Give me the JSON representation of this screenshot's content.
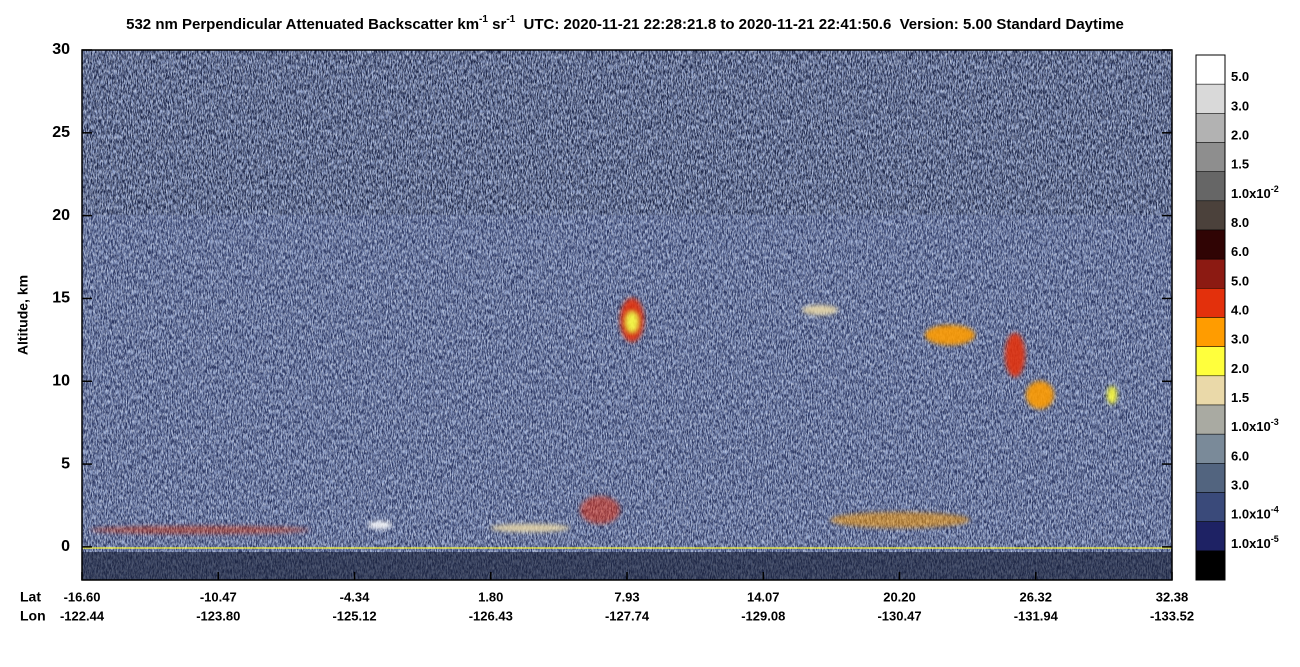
{
  "chart_data": {
    "type": "image",
    "title_parts": [
      "532 nm Perpendicular Attenuated Backscatter km",
      "-1",
      " sr",
      "-1",
      "  UTC: 2020-11-21 22:28:21.8 to 2020-11-21 22:41:50.6  Version: 5.00 Standard Daytime"
    ],
    "ylabel": "Altitude, km",
    "ylim": [
      -2,
      30
    ],
    "yticks": [
      0,
      5,
      10,
      15,
      20,
      25,
      30
    ],
    "lat_name": "Lat",
    "lon_name": "Lon",
    "lat_labels": [
      "-16.60",
      "-10.47",
      "-4.34",
      "1.80",
      "7.93",
      "14.07",
      "20.20",
      "26.32",
      "32.38"
    ],
    "lon_labels": [
      "-122.44",
      "-123.80",
      "-125.12",
      "-126.43",
      "-127.74",
      "-129.08",
      "-130.47",
      "-131.94",
      "-133.52"
    ],
    "colorbar": {
      "colors": [
        "#ffffff",
        "#d9d9d9",
        "#b2b2b2",
        "#8e8e8e",
        "#666666",
        "#4b413b",
        "#300404",
        "#8c1a12",
        "#e3300c",
        "#ff9c00",
        "#ffff3c",
        "#ead9a9",
        "#a9aaa2",
        "#7a8a99",
        "#52647f",
        "#3a4a7a",
        "#1e2264",
        "#000000"
      ],
      "labels": [
        {
          "text": "5.0"
        },
        {
          "text": "3.0"
        },
        {
          "text": "2.0"
        },
        {
          "text": "1.5"
        },
        {
          "text": "1.0x10",
          "sup": "-2"
        },
        {
          "text": "8.0"
        },
        {
          "text": "6.0"
        },
        {
          "text": "5.0"
        },
        {
          "text": "4.0"
        },
        {
          "text": "3.0"
        },
        {
          "text": "2.0"
        },
        {
          "text": "1.5"
        },
        {
          "text": "1.0x10",
          "sup": "-3"
        },
        {
          "text": "6.0"
        },
        {
          "text": "3.0"
        },
        {
          "text": "1.0x10",
          "sup": "-4"
        },
        {
          "text": "1.0x10",
          "sup": "-5"
        }
      ]
    }
  }
}
